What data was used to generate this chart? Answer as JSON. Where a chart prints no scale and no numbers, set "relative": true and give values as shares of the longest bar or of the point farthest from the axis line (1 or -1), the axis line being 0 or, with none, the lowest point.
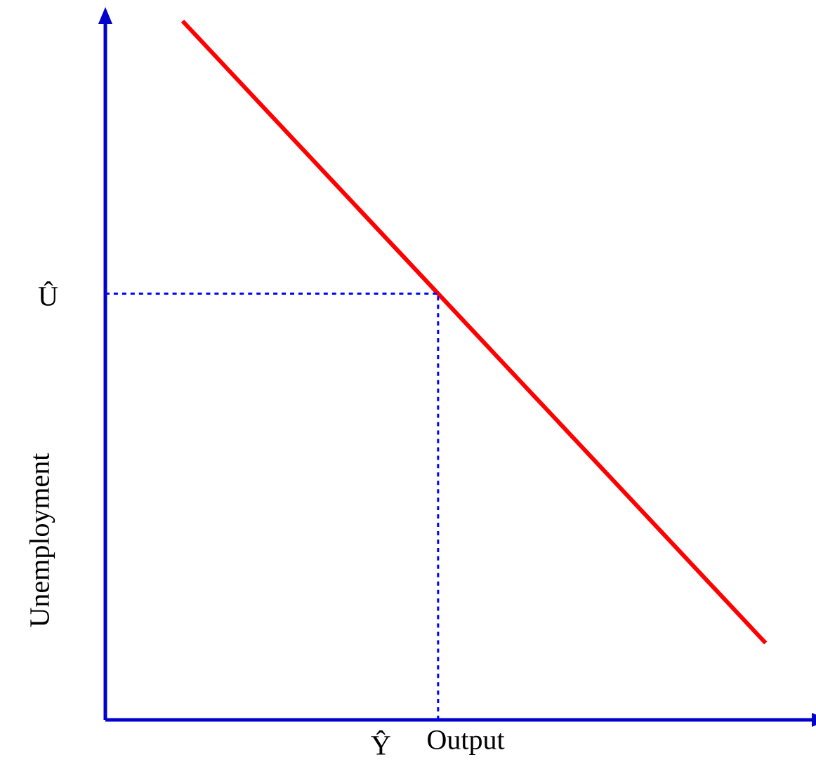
{
  "chart_data": {
    "type": "line",
    "relative": true,
    "xlabel": "Output",
    "ylabel": "Unemployment",
    "categories": [
      null,
      null
    ],
    "series": [
      {
        "color": "#ff0000",
        "values": [
          1,
          0.11
        ]
      }
    ],
    "annotations": [
      "Ŷ"
    ],
    "ref_lines": [
      {
        "axis": "y",
        "value": 0.61,
        "label": "Û",
        "color": "#0000ff",
        "line_style": "dashed"
      }
    ]
  }
}
